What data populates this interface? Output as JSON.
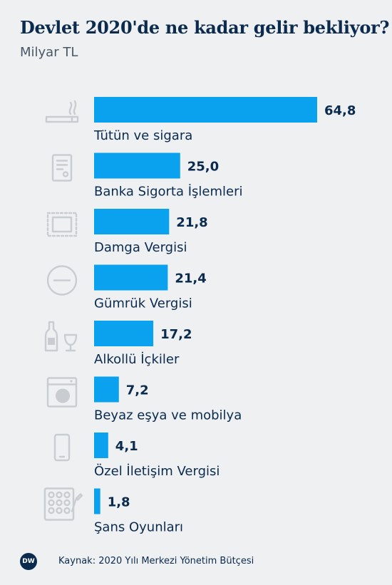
{
  "header": {
    "title": "Devlet 2020'de ne kadar gelir bekliyor?",
    "subtitle": "Milyar TL"
  },
  "chart_data": {
    "type": "bar",
    "orientation": "horizontal",
    "title": "Devlet 2020'de ne kadar gelir bekliyor?",
    "subtitle": "Milyar TL",
    "categories": [
      "Tütün ve sigara",
      "Banka Sigorta İşlemleri",
      "Damga Vergisi",
      "Gümrük Vergisi",
      "Alkollü İçkiler",
      "Beyaz eşya ve mobilya",
      "Özel İletişim Vergisi",
      "Şans Oyunları"
    ],
    "values": [
      64.8,
      25.0,
      21.8,
      21.4,
      17.2,
      7.2,
      4.1,
      1.8
    ],
    "value_labels": [
      "64,8",
      "25,0",
      "21,8",
      "21,4",
      "17,2",
      "7,2",
      "4,1",
      "1,8"
    ],
    "icons": [
      "cigarette-icon",
      "document-icon",
      "stamp-icon",
      "no-entry-icon",
      "bottle-and-glass-icon",
      "washing-machine-icon",
      "mobile-phone-icon",
      "lottery-ticket-icon"
    ],
    "bar_color": "#0aa2ee",
    "grid": false,
    "legend": "none"
  },
  "footer": {
    "logo": "DW",
    "source": "Kaynak: 2020 Yılı Merkezi Yönetim Bütçesi"
  }
}
